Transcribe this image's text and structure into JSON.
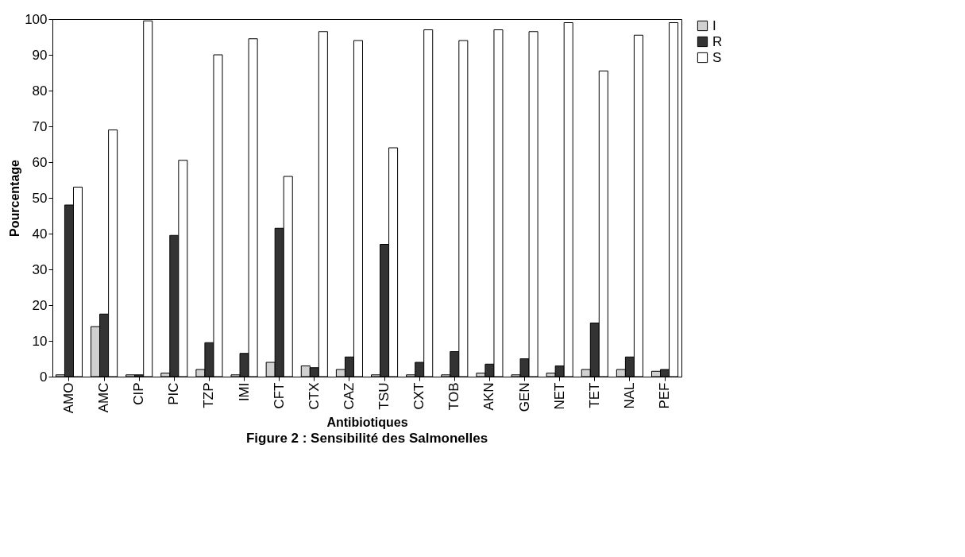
{
  "chart_data": {
    "type": "bar",
    "title": "Figure 2 : Sensibilité des Salmonelles",
    "xlabel": "Antibiotiques",
    "ylabel": "Pourcentage",
    "categories": [
      "AMO",
      "AMC",
      "CIP",
      "PIC",
      "TZP",
      "IMI",
      "CFT",
      "CTX",
      "CAZ",
      "TSU",
      "CXT",
      "TOB",
      "AKN",
      "GEN",
      "NET",
      "TET",
      "NAL",
      "PEF"
    ],
    "series": [
      {
        "name": "I",
        "color": "#d0d0d0",
        "values": [
          0.5,
          14,
          0.5,
          1,
          2,
          0.5,
          4,
          3,
          2,
          0.5,
          0.5,
          0.5,
          1,
          0.5,
          1,
          2,
          2,
          1.5
        ]
      },
      {
        "name": "R",
        "color": "#333333",
        "values": [
          48,
          17.5,
          0.5,
          39.5,
          9.5,
          6.5,
          41.5,
          2.5,
          5.5,
          37,
          4,
          7,
          3.5,
          5,
          3,
          15,
          5.5,
          2
        ]
      },
      {
        "name": "S",
        "color": "#ffffff",
        "values": [
          53,
          69,
          99.5,
          60.5,
          90,
          94.5,
          56,
          96.5,
          94,
          64,
          97,
          94,
          97,
          96.5,
          99,
          85.5,
          95.5,
          99
        ]
      }
    ],
    "ylim": [
      0,
      100
    ],
    "yticks": [
      0,
      10,
      20,
      30,
      40,
      50,
      60,
      70,
      80,
      90,
      100
    ],
    "grid": false,
    "legend": "right"
  }
}
